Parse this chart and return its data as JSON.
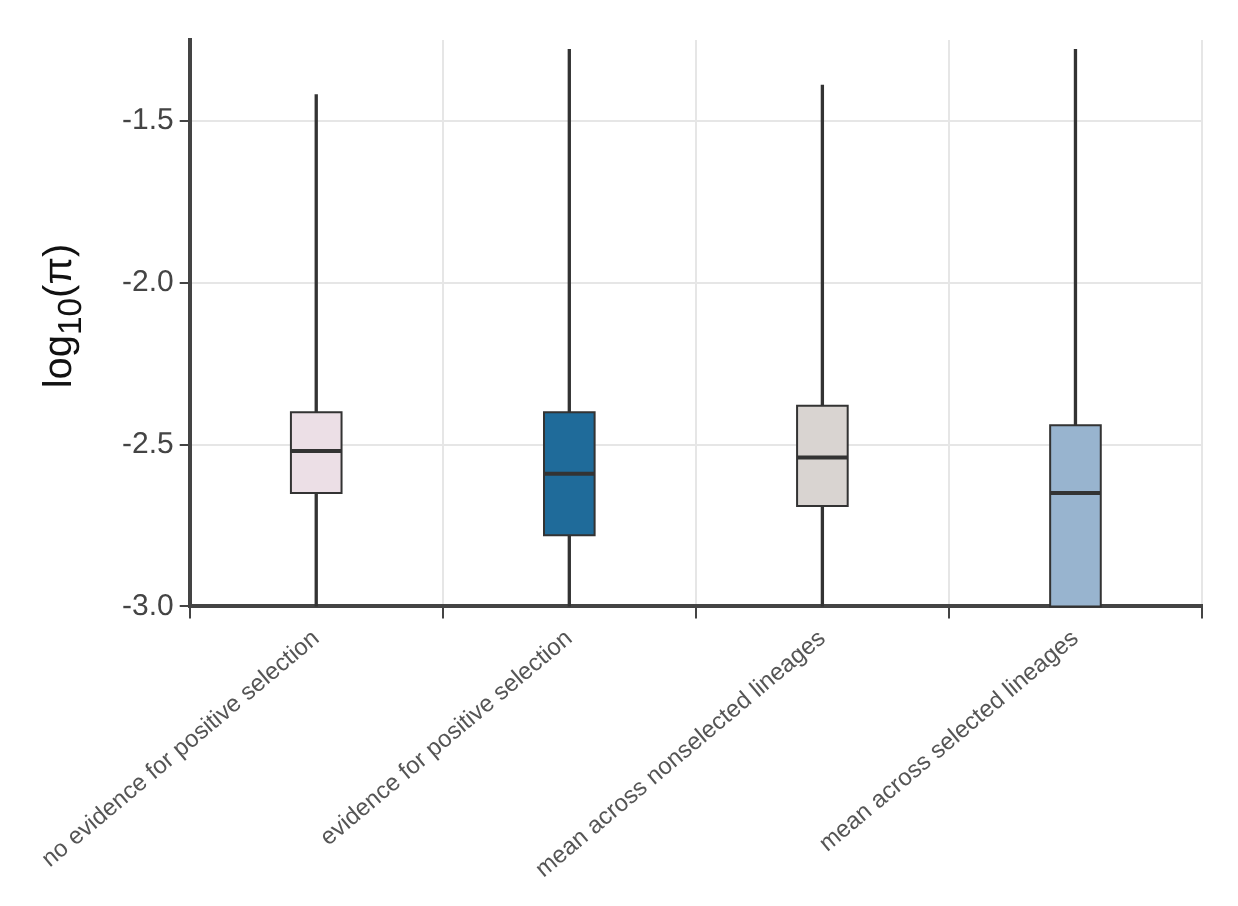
{
  "chart_data": {
    "type": "box",
    "ylabel": "log$_{10}$(π)",
    "categories": [
      "no evidence for positive selection",
      "evidence for positive selection",
      "mean across nonselected lineages",
      "mean across selected lineages"
    ],
    "colors": [
      "#ecdfe6",
      "#1f6b9a",
      "#d9d4d1",
      "#98b4cf"
    ],
    "boxes": [
      {
        "low": -3.0,
        "q1": -2.65,
        "median": -2.52,
        "q3": -2.4,
        "high": -1.42
      },
      {
        "low": -3.0,
        "q1": -2.78,
        "median": -2.59,
        "q3": -2.4,
        "high": -1.28
      },
      {
        "low": -3.0,
        "q1": -2.69,
        "median": -2.54,
        "q3": -2.38,
        "high": -1.39
      },
      {
        "low": -3.0,
        "q1": -3.0,
        "median": -2.65,
        "q3": -2.44,
        "high": -1.28
      }
    ],
    "ylim": [
      -3.0,
      -1.25
    ],
    "yticks": [
      {
        "value": -3.0,
        "label": "-3.0"
      },
      {
        "value": -2.5,
        "label": "-2.5"
      },
      {
        "value": -2.0,
        "label": "-2.0"
      },
      {
        "value": -1.5,
        "label": "-1.5"
      }
    ],
    "grid": true
  }
}
